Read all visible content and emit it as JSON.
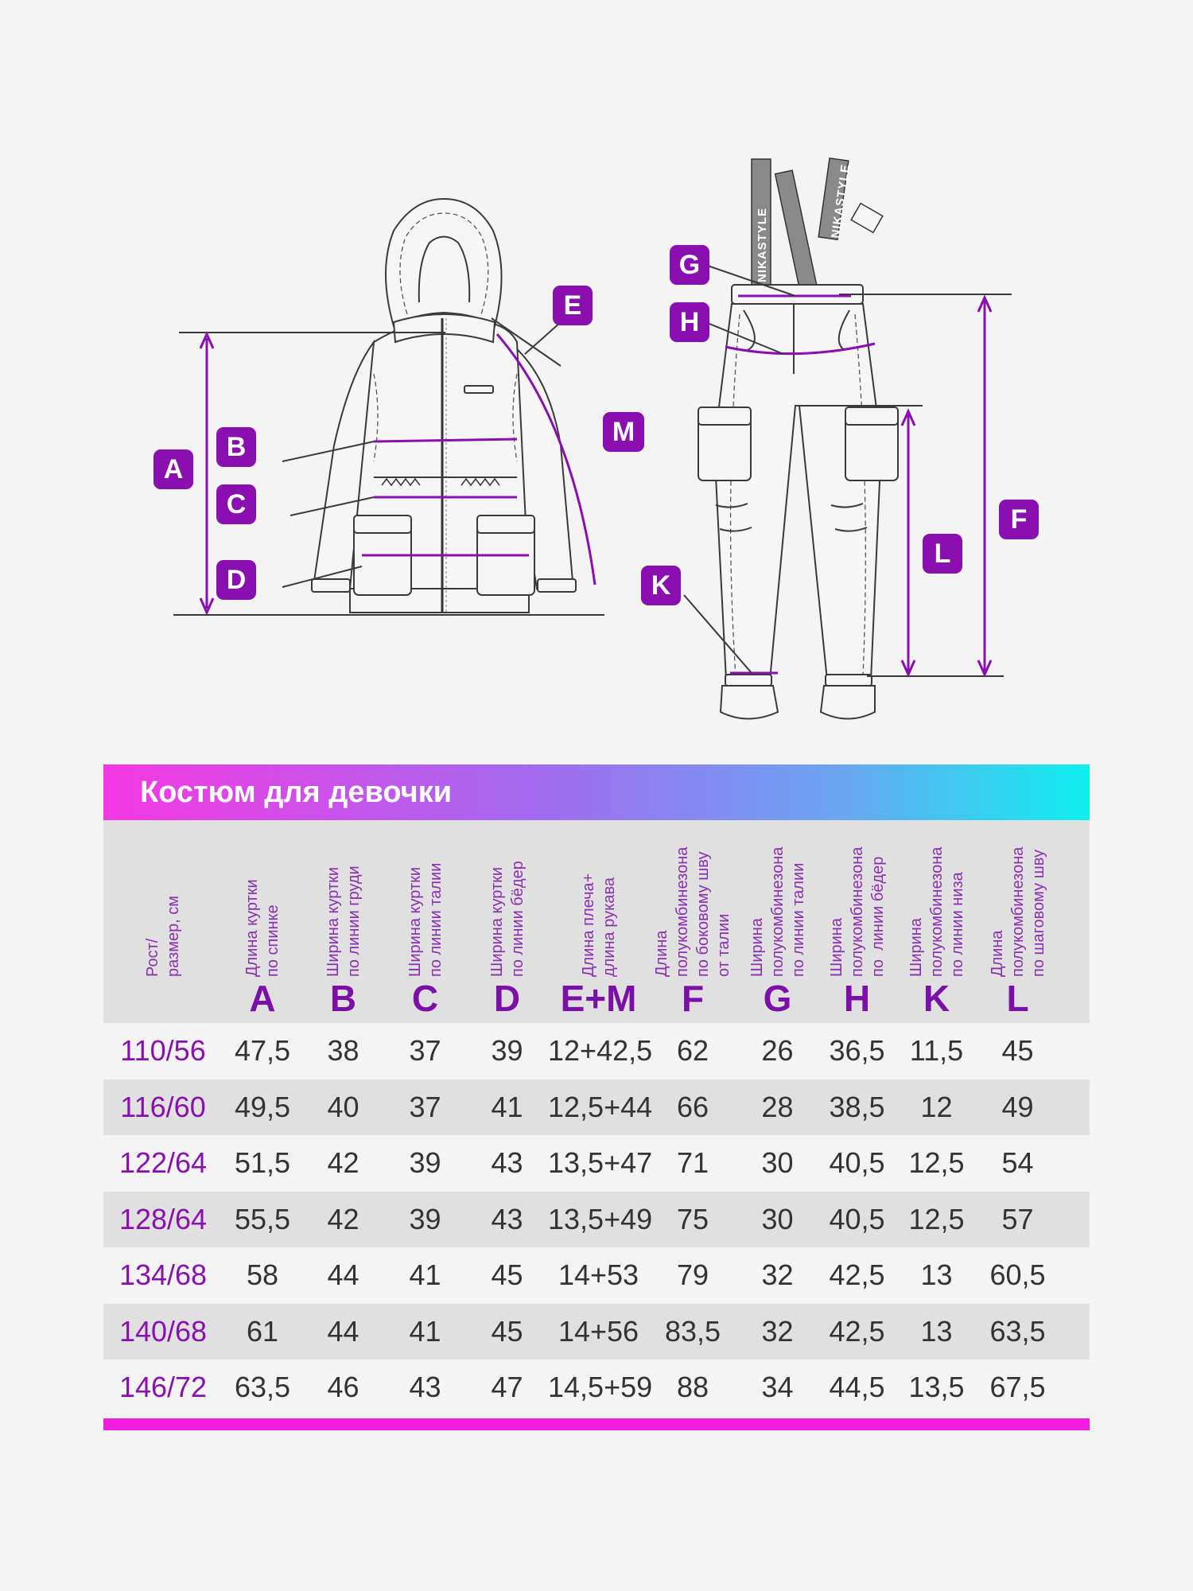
{
  "diagram": {
    "jacket_labels": [
      "A",
      "B",
      "C",
      "D",
      "E",
      "M"
    ],
    "pants_labels": [
      "G",
      "H",
      "F",
      "L",
      "K"
    ],
    "strap_text": "NIKASTYLE"
  },
  "table": {
    "title": "Костюм для девочки",
    "columns": [
      {
        "key": "size",
        "letter": "",
        "desc": "Рост/\nразмер, см"
      },
      {
        "key": "A",
        "letter": "A",
        "desc": "Длина куртки\nпо спинке"
      },
      {
        "key": "B",
        "letter": "B",
        "desc": "Ширина куртки\nпо линии груди"
      },
      {
        "key": "C",
        "letter": "C",
        "desc": "Ширина куртки\nпо линии талии"
      },
      {
        "key": "D",
        "letter": "D",
        "desc": "Ширина куртки\nпо линии бёдер"
      },
      {
        "key": "EM",
        "letter": "E+M",
        "desc": "Длина плеча+\nдлина рукава"
      },
      {
        "key": "F",
        "letter": "F",
        "desc": "Длина\nполукомбинезона\nпо боковому шву\nот талии"
      },
      {
        "key": "G",
        "letter": "G",
        "desc": "Ширина\nполукомбинезона\nпо линии талии"
      },
      {
        "key": "H",
        "letter": "H",
        "desc": "Ширина\nполукомбинезона\nпо  линии бёдер"
      },
      {
        "key": "K",
        "letter": "K",
        "desc": "Ширина\nполукомбинезона\nпо линии низа"
      },
      {
        "key": "L",
        "letter": "L",
        "desc": "Длина\nполукомбинезона\nпо шаговому шву"
      }
    ],
    "rows": [
      [
        "110/56",
        "47,5",
        "38",
        "37",
        "39",
        "12+42,5",
        "62",
        "26",
        "36,5",
        "11,5",
        "45"
      ],
      [
        "116/60",
        "49,5",
        "40",
        "37",
        "41",
        "12,5+44",
        "66",
        "28",
        "38,5",
        "12",
        "49"
      ],
      [
        "122/64",
        "51,5",
        "42",
        "39",
        "43",
        "13,5+47",
        "71",
        "30",
        "40,5",
        "12,5",
        "54"
      ],
      [
        "128/64",
        "55,5",
        "42",
        "39",
        "43",
        "13,5+49",
        "75",
        "30",
        "40,5",
        "12,5",
        "57"
      ],
      [
        "134/68",
        "58",
        "44",
        "41",
        "45",
        "14+53",
        "79",
        "32",
        "42,5",
        "13",
        "60,5"
      ],
      [
        "140/68",
        "61",
        "44",
        "41",
        "45",
        "14+56",
        "83,5",
        "32",
        "42,5",
        "13",
        "63,5"
      ],
      [
        "146/72",
        "63,5",
        "46",
        "43",
        "47",
        "14,5+59",
        "88",
        "34",
        "44,5",
        "13,5",
        "67,5"
      ]
    ]
  },
  "colors": {
    "accent": "#8a0fb0",
    "gradient_start": "#f538e3",
    "gradient_end": "#10f0f0",
    "bottom_bar": "#f21ce0",
    "stripe": "#e0e0e0"
  }
}
